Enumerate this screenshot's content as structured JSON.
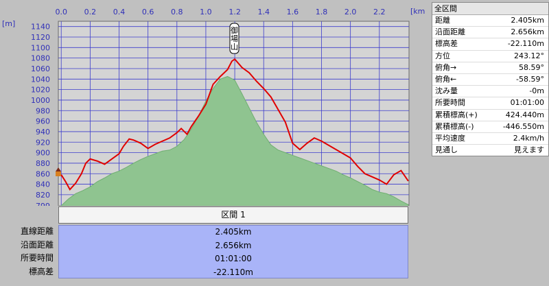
{
  "chart_data": {
    "type": "area",
    "units": {
      "x": "[km]",
      "y": "[m]"
    },
    "x_ticks": [
      "0.0",
      "0.2",
      "0.4",
      "0.6",
      "0.8",
      "1.0",
      "1.2",
      "1.4",
      "1.6",
      "1.8",
      "2.0",
      "2.2"
    ],
    "y_ticks": [
      "1140",
      "1120",
      "1100",
      "1080",
      "1060",
      "1040",
      "1020",
      "1000",
      "980",
      "960",
      "940",
      "920",
      "900",
      "880",
      "860",
      "840",
      "820",
      "799"
    ],
    "xlim": [
      -0.02,
      2.405
    ],
    "ylim": [
      799,
      1150
    ],
    "peak_label": "御場山",
    "series": [
      {
        "kind": "terrain-area",
        "color": "#8fc490",
        "x": [
          0.0,
          0.05,
          0.1,
          0.15,
          0.2,
          0.25,
          0.3,
          0.35,
          0.4,
          0.45,
          0.5,
          0.55,
          0.6,
          0.65,
          0.7,
          0.75,
          0.8,
          0.85,
          0.9,
          0.95,
          1.0,
          1.05,
          1.1,
          1.15,
          1.2,
          1.25,
          1.3,
          1.35,
          1.4,
          1.45,
          1.5,
          1.55,
          1.6,
          1.65,
          1.7,
          1.75,
          1.8,
          1.85,
          1.9,
          1.95,
          2.0,
          2.05,
          2.1,
          2.15,
          2.2,
          2.25,
          2.3,
          2.35,
          2.4
        ],
        "y": [
          799,
          812,
          822,
          828,
          835,
          845,
          852,
          860,
          865,
          872,
          880,
          887,
          893,
          898,
          903,
          905,
          912,
          925,
          945,
          970,
          998,
          1022,
          1040,
          1045,
          1038,
          1012,
          985,
          958,
          935,
          915,
          905,
          900,
          895,
          890,
          885,
          880,
          875,
          870,
          865,
          858,
          852,
          845,
          838,
          830,
          825,
          822,
          816,
          808,
          801
        ]
      },
      {
        "kind": "route-profile",
        "color": "#e00000",
        "x": [
          0.0,
          0.03,
          0.06,
          0.1,
          0.14,
          0.17,
          0.2,
          0.25,
          0.3,
          0.35,
          0.4,
          0.43,
          0.47,
          0.5,
          0.55,
          0.6,
          0.65,
          0.7,
          0.75,
          0.8,
          0.83,
          0.87,
          0.9,
          0.95,
          1.0,
          1.05,
          1.1,
          1.15,
          1.18,
          1.2,
          1.25,
          1.3,
          1.35,
          1.4,
          1.45,
          1.5,
          1.55,
          1.6,
          1.65,
          1.7,
          1.75,
          1.8,
          1.85,
          1.9,
          1.95,
          2.0,
          2.05,
          2.1,
          2.15,
          2.2,
          2.25,
          2.3,
          2.35,
          2.4
        ],
        "y": [
          858,
          845,
          830,
          842,
          860,
          880,
          888,
          884,
          878,
          888,
          898,
          912,
          926,
          924,
          918,
          908,
          916,
          922,
          928,
          938,
          946,
          935,
          950,
          970,
          992,
          1030,
          1045,
          1058,
          1074,
          1078,
          1062,
          1052,
          1036,
          1022,
          1006,
          982,
          958,
          918,
          906,
          918,
          928,
          922,
          914,
          906,
          898,
          890,
          874,
          860,
          854,
          848,
          840,
          858,
          866,
          846
        ]
      }
    ]
  },
  "stats": {
    "title": "全区間",
    "rows": [
      {
        "label": "距離",
        "value": "2.405km"
      },
      {
        "label": "沿面距離",
        "value": "2.656km"
      },
      {
        "label": "標高差",
        "value": "-22.110m"
      },
      {
        "label": "方位",
        "value": "243.12°"
      },
      {
        "label": "俯角→",
        "value": "58.59°"
      },
      {
        "label": "俯角←",
        "value": "-58.59°"
      },
      {
        "label": "沈み量",
        "value": "-0m"
      },
      {
        "label": "所要時間",
        "value": "01:01:00"
      },
      {
        "label": "累積標高(+)",
        "value": "424.440m"
      },
      {
        "label": "累積標高(-)",
        "value": "-446.550m"
      },
      {
        "label": "平均速度",
        "value": "2.4km/h"
      },
      {
        "label": "見通し",
        "value": "見えます"
      }
    ]
  },
  "section": {
    "label": "区間 1"
  },
  "info": {
    "labels": [
      "直線距離",
      "沿面距離",
      "所要時間",
      "標高差"
    ],
    "values": [
      "2.405km",
      "2.656km",
      "01:01:00",
      "-22.110m"
    ]
  }
}
